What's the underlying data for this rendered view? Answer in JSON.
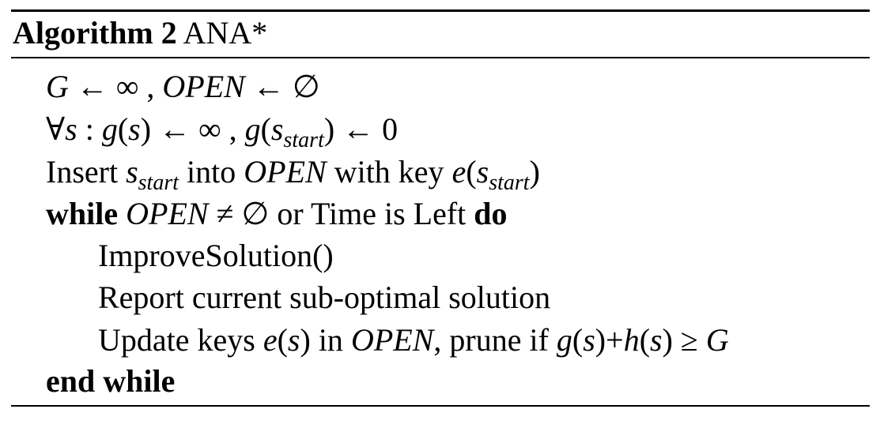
{
  "caption": {
    "label": "Algorithm 2",
    "name": "ANA*"
  },
  "lines": [
    {
      "parts": [
        "G",
        " ← ∞ , ",
        "OPEN",
        " ← ∅"
      ]
    },
    {
      "parts": [
        "∀",
        "s",
        " : ",
        "g",
        "(",
        "s",
        ") ← ∞ , ",
        "g",
        "(",
        "s",
        "start",
        ") ← 0"
      ]
    },
    {
      "parts": [
        "Insert ",
        "s",
        "start",
        " into ",
        "OPEN",
        " with key ",
        "e",
        "(",
        "s",
        "start",
        ")"
      ]
    },
    {
      "parts": [
        "while",
        " ",
        "OPEN",
        " ≠ ∅ or Time is Left ",
        "do"
      ]
    },
    {
      "parts": [
        "ImproveSolution()"
      ]
    },
    {
      "parts": [
        "Report current sub-optimal solution"
      ]
    },
    {
      "parts": [
        "Update keys ",
        "e",
        "(",
        "s",
        ") in ",
        "OPEN",
        ", prune if ",
        "g",
        "(",
        "s",
        ")+",
        "h",
        "(",
        "s",
        ") ≥ ",
        "G"
      ]
    },
    {
      "parts": [
        "end while"
      ]
    }
  ]
}
